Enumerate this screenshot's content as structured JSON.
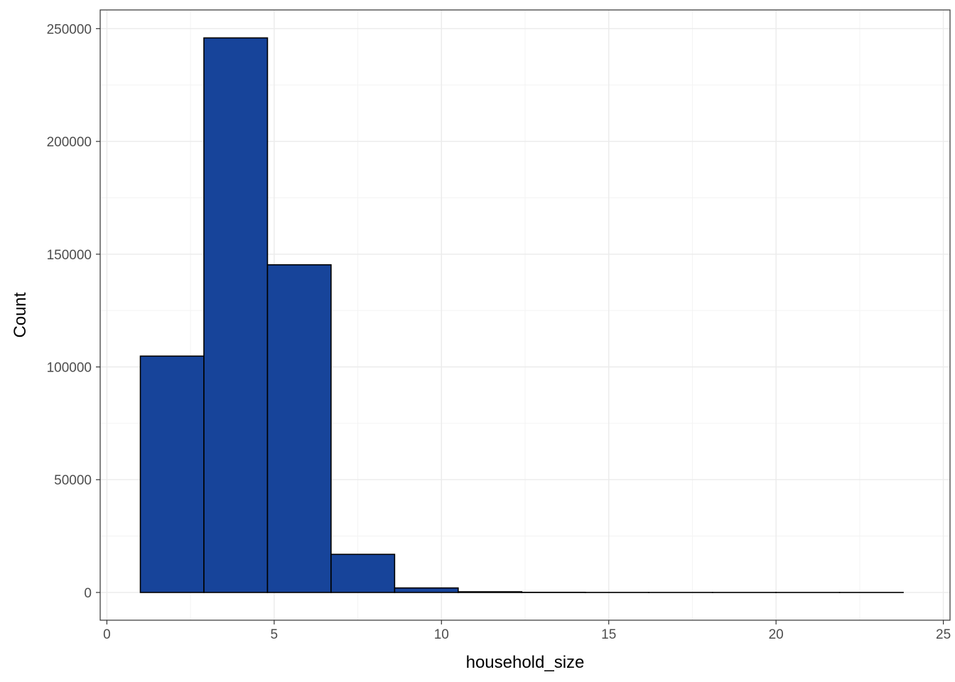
{
  "chart_data": {
    "type": "bar",
    "xlabel": "household_size",
    "ylabel": "Count",
    "xlim": [
      -0.2,
      25.2
    ],
    "ylim": [
      -12300,
      258300
    ],
    "x_ticks": [
      0,
      5,
      10,
      15,
      20,
      25
    ],
    "x_tick_labels": [
      "0",
      "5",
      "10",
      "15",
      "20",
      "25"
    ],
    "y_ticks": [
      0,
      50000,
      100000,
      150000,
      200000,
      250000
    ],
    "y_tick_labels": [
      "0",
      "50000",
      "100000",
      "150000",
      "200000",
      "250000"
    ],
    "bins": [
      {
        "x0": 1.0,
        "x1": 2.9,
        "count": 104800
      },
      {
        "x0": 2.9,
        "x1": 4.8,
        "count": 245900
      },
      {
        "x0": 4.8,
        "x1": 6.7,
        "count": 145300
      },
      {
        "x0": 6.7,
        "x1": 8.6,
        "count": 16900
      },
      {
        "x0": 8.6,
        "x1": 10.5,
        "count": 2000
      },
      {
        "x0": 10.5,
        "x1": 12.4,
        "count": 300
      },
      {
        "x0": 12.4,
        "x1": 14.3,
        "count": 60
      },
      {
        "x0": 14.3,
        "x1": 16.2,
        "count": 15
      },
      {
        "x0": 16.2,
        "x1": 18.1,
        "count": 5
      },
      {
        "x0": 18.1,
        "x1": 20.0,
        "count": 2
      },
      {
        "x0": 20.0,
        "x1": 21.9,
        "count": 1
      },
      {
        "x0": 21.9,
        "x1": 23.8,
        "count": 1
      }
    ],
    "grid": true,
    "legend": "none",
    "bar_fill": "#17449a",
    "bar_stroke": "#000000",
    "panel_border": "#333333",
    "grid_major_color": "#ebebeb",
    "grid_minor_color": "#f3f3f3"
  }
}
